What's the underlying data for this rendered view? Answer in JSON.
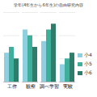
{
  "chart_data": {
    "type": "bar",
    "title": "学年(4年生から6年生)の自由研究内容",
    "categories": [
      "工作",
      "観察",
      "調べ学習",
      "実験"
    ],
    "series": [
      {
        "name": "小4",
        "color": "#8fd0e0",
        "values": [
          25,
          45,
          35,
          15
        ]
      },
      {
        "name": "小5",
        "color": "#3fae9a",
        "values": [
          30,
          40,
          45,
          20
        ]
      },
      {
        "name": "小6",
        "color": "#2e7d6b",
        "values": [
          20,
          30,
          50,
          25
        ]
      }
    ],
    "ylim": [
      0,
      60
    ],
    "yticks": [
      0,
      20,
      40,
      60
    ],
    "grid": true,
    "legend": "right",
    "tick_labels": "x"
  }
}
